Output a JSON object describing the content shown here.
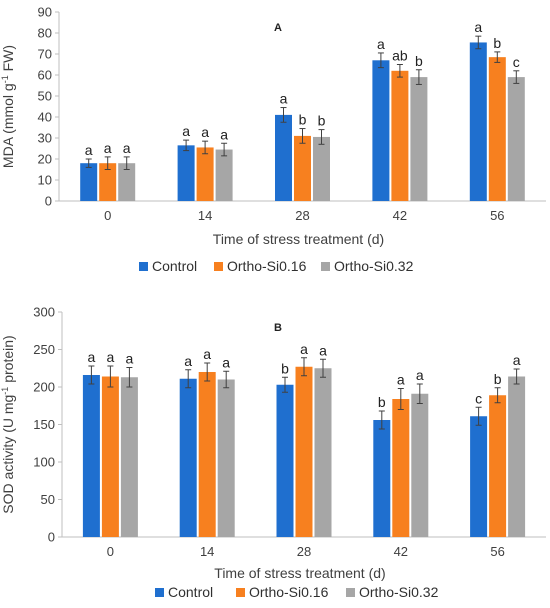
{
  "colors": {
    "control": "#1f6fcf",
    "si016": "#f7801f",
    "si032": "#a6a6a6",
    "axis": "#bfbfbf",
    "error": "#404040"
  },
  "chart_data": [
    {
      "type": "bar",
      "panel_label": "A",
      "categories": [
        "0",
        "14",
        "28",
        "42",
        "56"
      ],
      "xlabel": "Time of stress treatment (d)",
      "ylabel_main": "MDA (mmol g",
      "ylabel_sup": "-1",
      "ylabel_tail": " FW)",
      "ylim": [
        0,
        90
      ],
      "ytick_step": 10,
      "legend_position": "bottom",
      "grid": false,
      "series": [
        {
          "name": "Control",
          "values": [
            18,
            26.5,
            41,
            67,
            75.5
          ],
          "errors": [
            2,
            2.5,
            3.5,
            3.5,
            3
          ],
          "letters": [
            "a",
            "a",
            "a",
            "a",
            "a"
          ]
        },
        {
          "name": "Ortho-Si0.16",
          "values": [
            18,
            25.5,
            31,
            62,
            68.5
          ],
          "errors": [
            3,
            3,
            3.5,
            3,
            2.5
          ],
          "letters": [
            "a",
            "a",
            "b",
            "ab",
            "b"
          ]
        },
        {
          "name": "Ortho-Si0.32",
          "values": [
            18,
            24.5,
            30.5,
            59,
            59
          ],
          "errors": [
            3,
            3,
            3.5,
            3.5,
            3
          ],
          "letters": [
            "a",
            "a",
            "b",
            "b",
            "c"
          ]
        }
      ]
    },
    {
      "type": "bar",
      "panel_label": "B",
      "categories": [
        "0",
        "14",
        "28",
        "42",
        "56"
      ],
      "xlabel": "Time of stress treatment (d)",
      "ylabel_main": "SOD activity (U mg",
      "ylabel_sup": "-1",
      "ylabel_tail": " protein)",
      "ylim": [
        0,
        300
      ],
      "ytick_step": 50,
      "legend_position": "bottom",
      "grid": false,
      "series": [
        {
          "name": "Control",
          "values": [
            216,
            211,
            203,
            156,
            161
          ],
          "errors": [
            12,
            12,
            10,
            12,
            12
          ],
          "letters": [
            "a",
            "a",
            "b",
            "b",
            "c"
          ]
        },
        {
          "name": "Ortho-Si0.16",
          "values": [
            214,
            220,
            227,
            184,
            189
          ],
          "errors": [
            14,
            12,
            12,
            14,
            10
          ],
          "letters": [
            "a",
            "a",
            "a",
            "a",
            "b"
          ]
        },
        {
          "name": "Ortho-Si0.32",
          "values": [
            213,
            210,
            225,
            191,
            214
          ],
          "errors": [
            13,
            11,
            12,
            13,
            10
          ],
          "letters": [
            "a",
            "a",
            "a",
            "a",
            "a"
          ]
        }
      ]
    }
  ]
}
